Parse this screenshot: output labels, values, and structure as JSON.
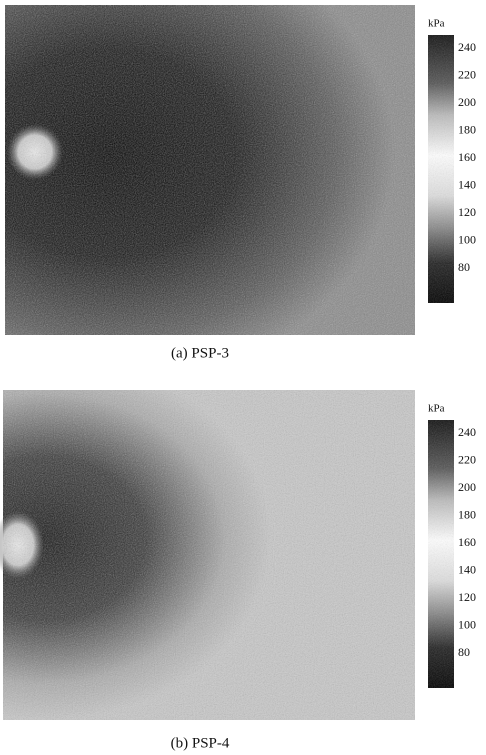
{
  "panels": [
    {
      "caption": "(a) PSP-3",
      "colorbar": {
        "unit": "kPa",
        "ticks": [
          240,
          220,
          200,
          180,
          160,
          140,
          120,
          100,
          80
        ]
      }
    },
    {
      "caption": "(b) PSP-4",
      "colorbar": {
        "unit": "kPa",
        "ticks": [
          240,
          220,
          200,
          180,
          160,
          140,
          120,
          100,
          80
        ]
      }
    }
  ]
}
